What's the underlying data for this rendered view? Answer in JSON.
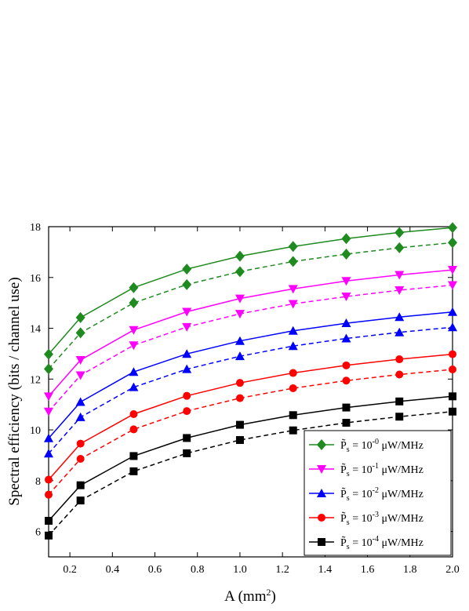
{
  "chart_data": {
    "type": "line",
    "xlabel": "A (mm",
    "xlabel_sup": "2",
    "xlabel_end": ")",
    "ylabel": "Spectral efficiency (bits / channel use)",
    "xlim": [
      0.1,
      2.0
    ],
    "ylim": [
      5,
      18
    ],
    "x_ticks": [
      "0.2",
      "0.4",
      "0.6",
      "0.8",
      "1.0",
      "1.2",
      "1.4",
      "1.6",
      "1.8",
      "2.0"
    ],
    "x_tick_values": [
      0.2,
      0.4,
      0.6,
      0.8,
      1.0,
      1.2,
      1.4,
      1.6,
      1.8,
      2.0
    ],
    "y_ticks": [
      "6",
      "8",
      "10",
      "12",
      "14",
      "16",
      "18"
    ],
    "y_tick_values": [
      6,
      8,
      10,
      12,
      14,
      16,
      18
    ],
    "grid": false,
    "legend_position": "bottom-right",
    "x": [
      0.1,
      0.25,
      0.5,
      0.75,
      1.0,
      1.25,
      1.5,
      1.75,
      2.0
    ],
    "series": [
      {
        "name": "P̃s = 10^-0 μW/MHz",
        "legend_prefix": "P̃",
        "legend_sub": "s",
        "legend_mid": " = 10",
        "legend_sup": "-0",
        "legend_unit": " μW/MHz",
        "color": "#1f8a1f",
        "marker": "diamond",
        "solid": [
          12.98,
          14.42,
          15.6,
          16.33,
          16.84,
          17.22,
          17.53,
          17.77,
          17.96
        ],
        "dashed": [
          12.4,
          13.82,
          15.0,
          15.72,
          16.23,
          16.63,
          16.92,
          17.17,
          17.37
        ]
      },
      {
        "name": "P̃s = 10^-1 μW/MHz",
        "legend_prefix": "P̃",
        "legend_sub": "s",
        "legend_mid": " = 10",
        "legend_sup": "-1",
        "legend_unit": " μW/MHz",
        "color": "#ff00ff",
        "marker": "triangle-down",
        "solid": [
          11.32,
          12.75,
          13.93,
          14.65,
          15.17,
          15.55,
          15.86,
          16.1,
          16.3
        ],
        "dashed": [
          10.72,
          12.15,
          13.33,
          14.05,
          14.57,
          14.96,
          15.25,
          15.5,
          15.7
        ]
      },
      {
        "name": "P̃s = 10^-2 μW/MHz",
        "legend_prefix": "P̃",
        "legend_sub": "s",
        "legend_mid": " = 10",
        "legend_sup": "-2",
        "legend_unit": " μW/MHz",
        "color": "#0000ff",
        "marker": "triangle-up",
        "solid": [
          9.67,
          11.1,
          12.28,
          12.99,
          13.5,
          13.9,
          14.2,
          14.44,
          14.64
        ],
        "dashed": [
          9.07,
          10.5,
          11.68,
          12.39,
          12.9,
          13.3,
          13.6,
          13.84,
          14.04
        ]
      },
      {
        "name": "P̃s = 10^-3 μW/MHz",
        "legend_prefix": "P̃",
        "legend_sub": "s",
        "legend_mid": " = 10",
        "legend_sup": "-3",
        "legend_unit": " μW/MHz",
        "color": "#ff0000",
        "marker": "circle",
        "solid": [
          8.04,
          9.46,
          10.62,
          11.34,
          11.85,
          12.24,
          12.54,
          12.78,
          12.98
        ],
        "dashed": [
          7.45,
          8.86,
          10.02,
          10.74,
          11.25,
          11.64,
          11.94,
          12.18,
          12.38
        ]
      },
      {
        "name": "P̃s = 10^-4 μW/MHz",
        "legend_prefix": "P̃",
        "legend_sub": "s",
        "legend_mid": " = 10",
        "legend_sup": "-4",
        "legend_unit": " μW/MHz",
        "color": "#000000",
        "marker": "square",
        "solid": [
          6.42,
          7.82,
          8.97,
          9.68,
          10.2,
          10.58,
          10.88,
          11.12,
          11.32
        ],
        "dashed": [
          5.84,
          7.22,
          8.37,
          9.08,
          9.6,
          9.98,
          10.28,
          10.52,
          10.72
        ]
      }
    ]
  }
}
